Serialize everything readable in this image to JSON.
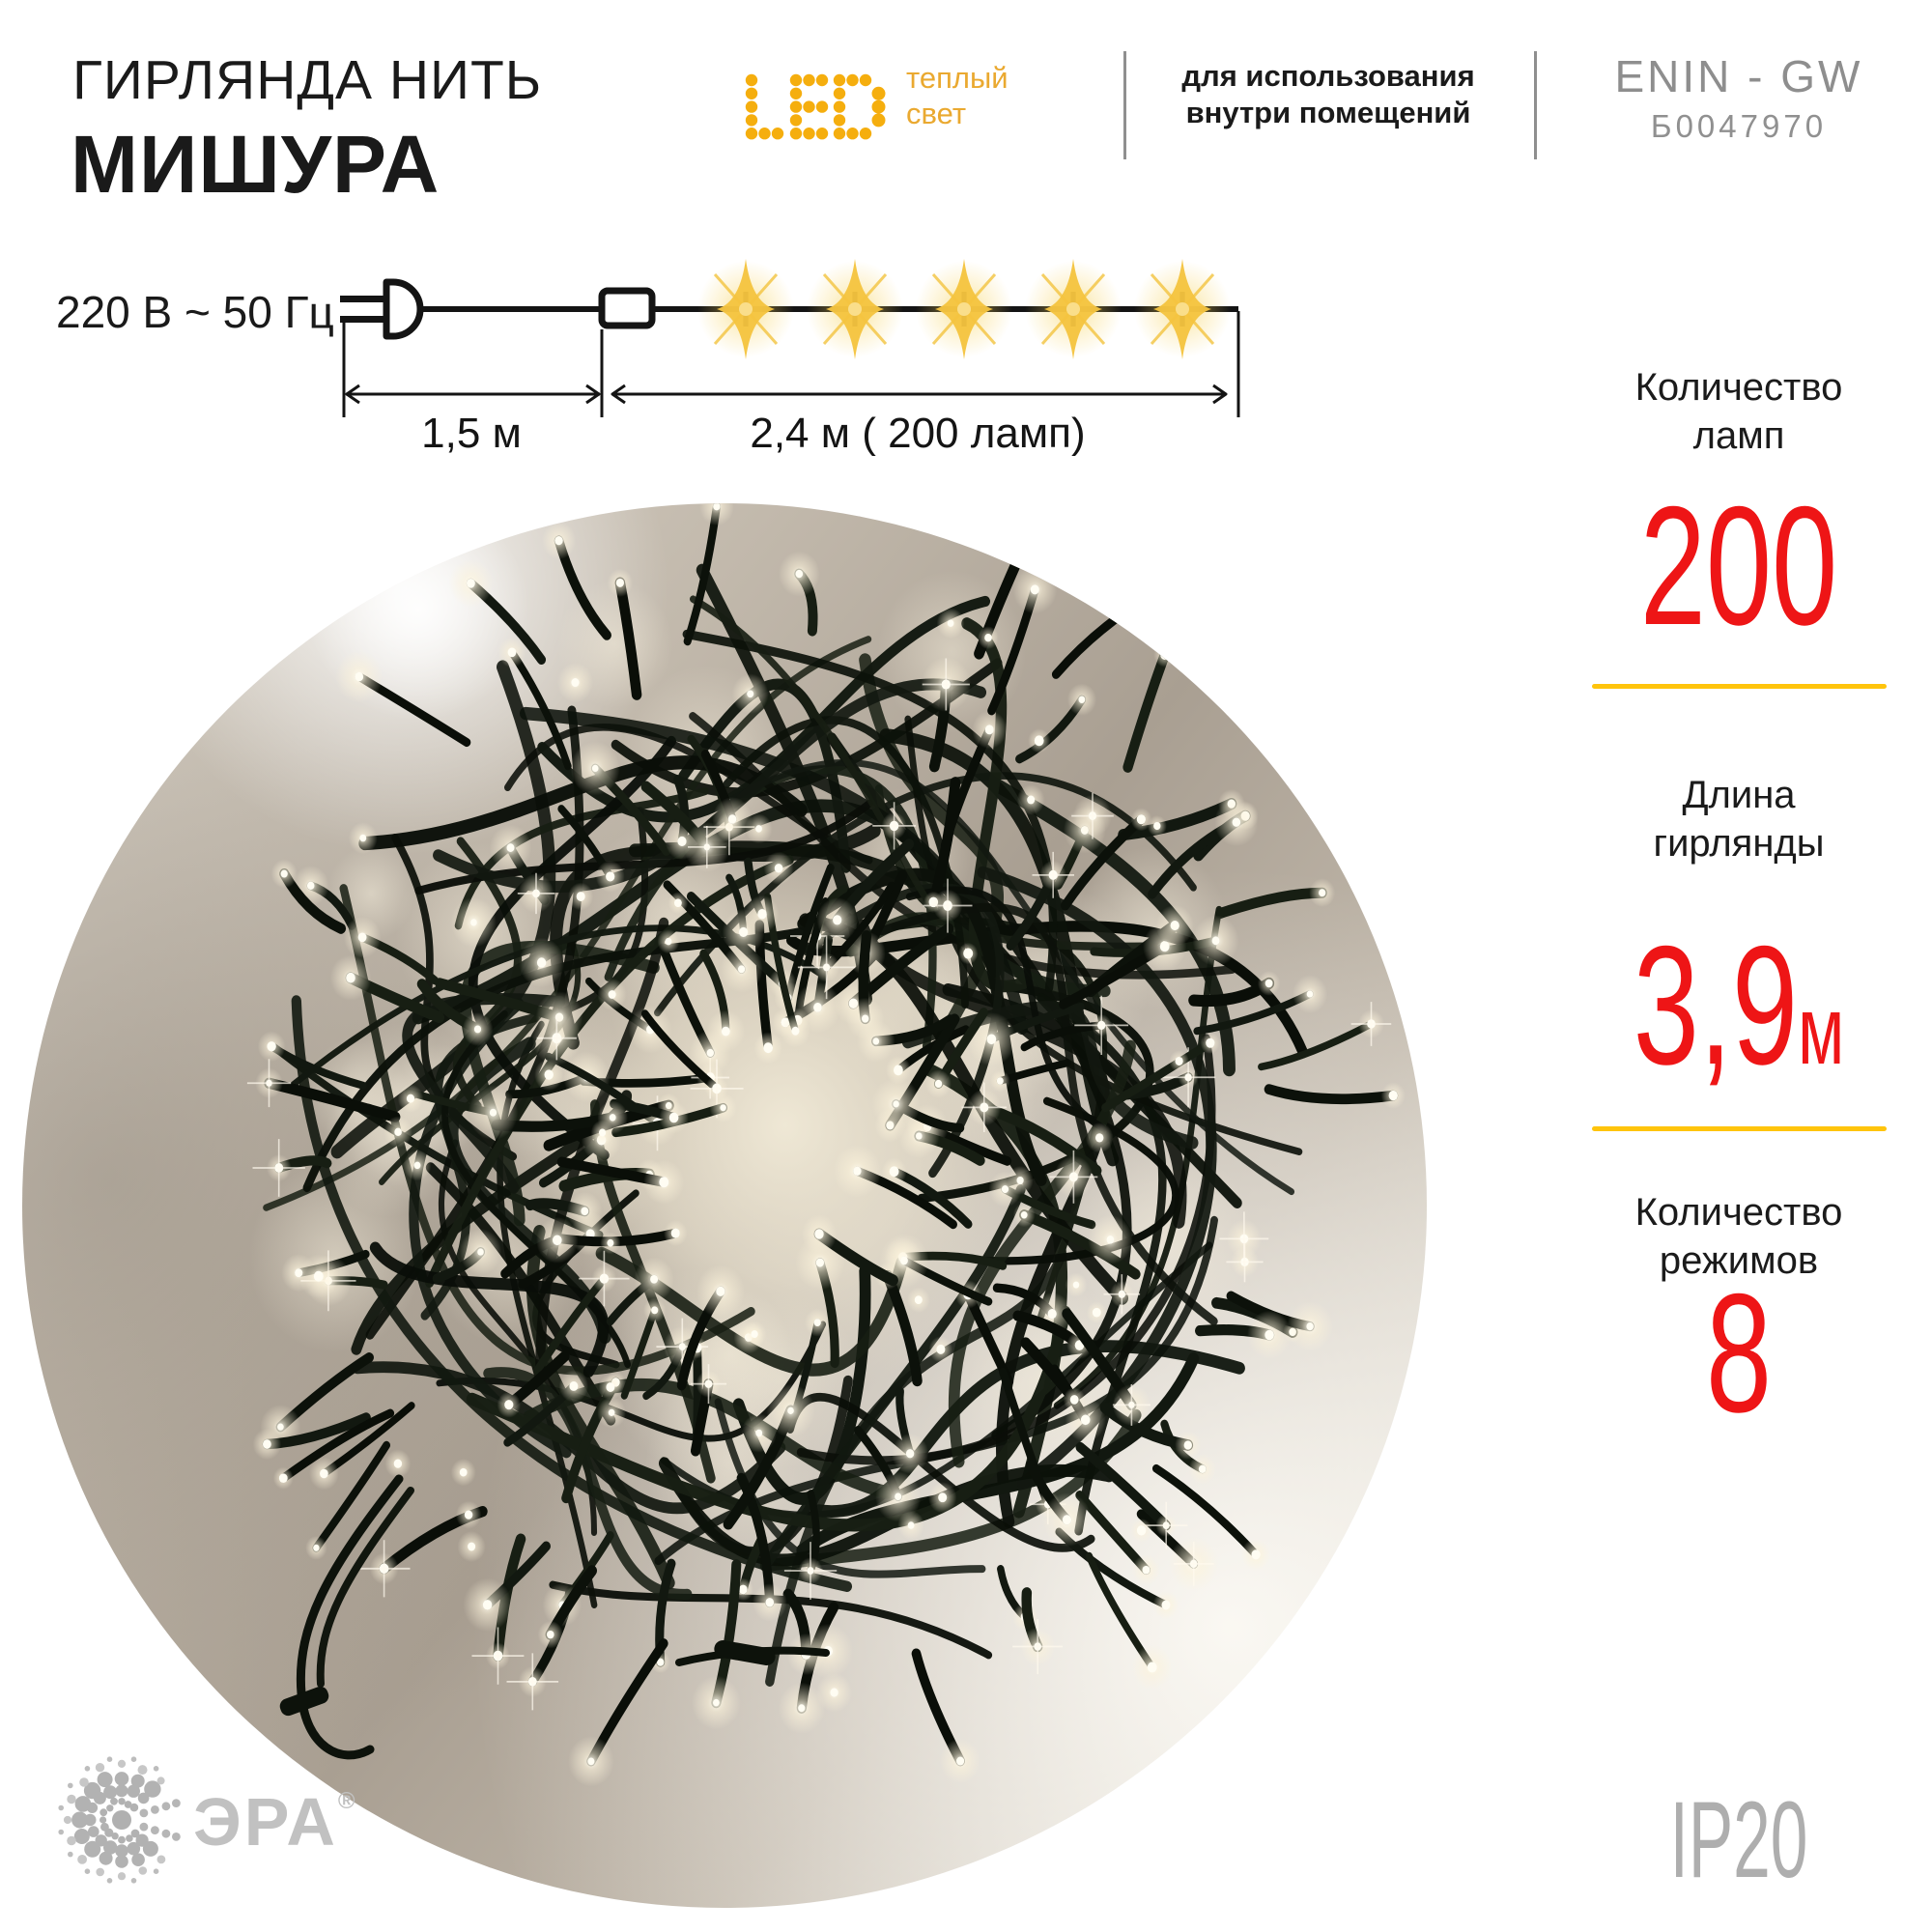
{
  "header": {
    "title_line1": "ГИРЛЯНДА НИТЬ",
    "title_line2": "МИШУРА",
    "led": {
      "text": "LED",
      "warm_line1": "теплый",
      "warm_line2": "свет"
    },
    "usage_line1": "для использования",
    "usage_line2": "внутри помещений",
    "model": "ENIN - GW",
    "sku": "Б0047970"
  },
  "diagram": {
    "power_label": "220 В ~ 50 Гц",
    "section1_label": "1,5 м",
    "section2_label": "2,4 м ( 200 ламп)",
    "bulb_count": 5
  },
  "specs": {
    "lamp_count": {
      "label1": "Количество",
      "label2": "ламп",
      "value": "200"
    },
    "length": {
      "label1": "Длина",
      "label2": "гирлянды",
      "value": "3,9",
      "suffix": "м"
    },
    "modes": {
      "label1": "Количество",
      "label2": "режимов",
      "value": "8"
    }
  },
  "footer": {
    "brand": "ЭРА",
    "reg": "®",
    "ip": "IP20"
  },
  "colors": {
    "accent_red": "#ee1516",
    "accent_yellow": "#ffc40c",
    "star_yellow": "#f5c43f",
    "led_yellow": "#f5ae0e",
    "warm_text_yellow": "#eaa930",
    "gray_text": "#8e8e8e",
    "light_gray": "#aeaeae",
    "ink": "#141414"
  }
}
